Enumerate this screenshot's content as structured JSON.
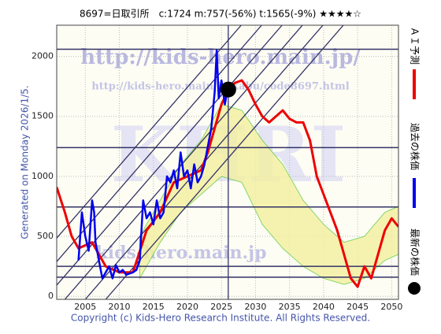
{
  "chart_data": {
    "type": "line",
    "title": "8697=日取引所　c:1724  m:757(-56%)  t:1565(-9%)  ★★★★☆",
    "y_label": "Generated on Monday 2026/1/5.",
    "footer": "Copyright (c) Kids-Hero Research Institute. All Rights Reserved.",
    "watermarks": [
      "http://kids-hero.main.jp/",
      "http://kids-hero.main.jp/kabu/code8697.html",
      "KHRI",
      "kids-hero.main.jp"
    ],
    "xlim": [
      2000.8,
      2051
    ],
    "ylim": [
      -25,
      2260
    ],
    "xticks": [
      2005,
      2010,
      2015,
      2020,
      2025,
      2030,
      2035,
      2040,
      2045,
      2050
    ],
    "yticks": [
      0,
      500,
      1000,
      1500,
      2000
    ],
    "grid": true,
    "series": [
      {
        "name": "ＡＩ予測",
        "color": "#ee0000",
        "x": [
          2000.8,
          2002,
          2003,
          2004,
          2006,
          2008,
          2010,
          2012,
          2014,
          2016,
          2018,
          2020,
          2022,
          2023,
          2024,
          2025,
          2026,
          2027,
          2028,
          2029,
          2030,
          2031,
          2032,
          2033,
          2034,
          2035,
          2036,
          2037,
          2038,
          2039,
          2040,
          2041,
          2042,
          2043,
          2044,
          2045,
          2046,
          2047,
          2048,
          2049,
          2050,
          2051
        ],
        "values": [
          910,
          700,
          500,
          400,
          450,
          250,
          200,
          200,
          550,
          700,
          950,
          1000,
          1050,
          1200,
          1400,
          1600,
          1720,
          1780,
          1800,
          1720,
          1600,
          1500,
          1450,
          1500,
          1550,
          1480,
          1450,
          1450,
          1300,
          1000,
          850,
          700,
          550,
          350,
          150,
          80,
          250,
          150,
          350,
          550,
          650,
          580
        ]
      },
      {
        "name": "過去の株価",
        "color": "#0000ee",
        "x": [
          2004,
          2004.5,
          2005,
          2005.5,
          2006,
          2006.3,
          2006.5,
          2007,
          2007.5,
          2008,
          2008.5,
          2009,
          2009.5,
          2010,
          2010.5,
          2011,
          2012,
          2012.5,
          2013,
          2013.5,
          2014,
          2014.5,
          2015,
          2015.5,
          2016,
          2016.5,
          2017,
          2017.5,
          2018,
          2018.5,
          2019,
          2019.5,
          2020,
          2020.5,
          2021,
          2021.5,
          2022,
          2022.5,
          2023,
          2023.5,
          2024,
          2024.3,
          2024.6,
          2025,
          2025.5,
          2025.9
        ],
        "values": [
          300,
          700,
          500,
          380,
          800,
          700,
          450,
          300,
          150,
          200,
          250,
          150,
          260,
          200,
          220,
          180,
          200,
          220,
          300,
          800,
          650,
          700,
          600,
          800,
          650,
          700,
          1000,
          950,
          1050,
          900,
          1200,
          1000,
          1050,
          900,
          1100,
          950,
          1000,
          1100,
          1250,
          1400,
          1700,
          2050,
          1650,
          1800,
          1600,
          1724
        ]
      }
    ],
    "band": {
      "color": "#66cc44",
      "x": [
        2013,
        2016,
        2019,
        2022,
        2025,
        2028,
        2031,
        2034,
        2037,
        2040,
        2043,
        2046,
        2049,
        2051
      ],
      "upper": [
        500,
        800,
        1100,
        1300,
        1600,
        1550,
        1300,
        1100,
        800,
        600,
        450,
        500,
        700,
        750
      ],
      "lower": [
        150,
        450,
        700,
        850,
        1000,
        950,
        600,
        400,
        250,
        150,
        100,
        150,
        300,
        350
      ]
    },
    "latest": {
      "name": "最新の株価",
      "x": 2026.0,
      "value": 1724,
      "color": "#000000"
    },
    "levels": [
      2060,
      1240,
      745,
      250,
      160
    ],
    "trend_lines": [
      [
        1993,
        -25,
        2027.9,
        2260
      ],
      [
        1996,
        -25,
        2030.9,
        2260
      ],
      [
        1999,
        -25,
        2033.9,
        2260
      ],
      [
        2002,
        -25,
        2036.9,
        2260
      ],
      [
        2005,
        -25,
        2039.9,
        2260
      ],
      [
        2008,
        -25,
        2042.9,
        2260
      ]
    ]
  }
}
